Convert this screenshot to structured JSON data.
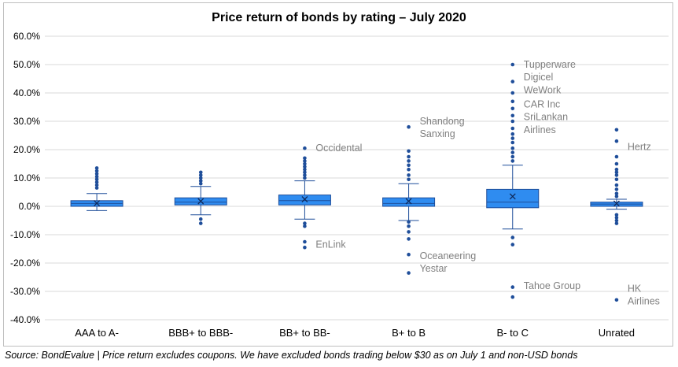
{
  "chart_data": {
    "type": "box",
    "title": "Price return of bonds by rating – July 2020",
    "xlabel": "",
    "ylabel": "",
    "ylim": [
      -40,
      60
    ],
    "y_ticks": [
      -40,
      -30,
      -20,
      -10,
      0,
      10,
      20,
      30,
      40,
      50,
      60
    ],
    "y_tick_labels": [
      "-40.0%",
      "-30.0%",
      "-20.0%",
      "-10.0%",
      "0.0%",
      "10.0%",
      "20.0%",
      "30.0%",
      "40.0%",
      "50.0%",
      "60.0%"
    ],
    "grid": true,
    "colors": {
      "box": "#2f8cf0",
      "box_border": "#1f4e9a",
      "outlier": "#1f4e9a",
      "grid": "#d9d9d9",
      "annotation": "#7f7f7f"
    },
    "categories": [
      "AAA to A-",
      "BBB+ to BBB-",
      "BB+ to BB-",
      "B+ to B",
      "B- to C",
      "Unrated"
    ],
    "boxes": [
      {
        "category": "AAA to A-",
        "whisker_low": -1.5,
        "q1": 0.0,
        "median": 1.0,
        "q3": 2.0,
        "whisker_high": 4.5,
        "mean": 1.1,
        "outliers": [
          6.5,
          7.5,
          8.5,
          9.5,
          10.5,
          11.5,
          12.5,
          13.5
        ]
      },
      {
        "category": "BBB+ to BBB-",
        "whisker_low": -3.0,
        "q1": 0.5,
        "median": 1.5,
        "q3": 3.0,
        "whisker_high": 7.0,
        "mean": 1.8,
        "outliers": [
          -6.0,
          -4.5,
          8.0,
          9.0,
          10.0,
          11.0,
          12.0
        ]
      },
      {
        "category": "BB+ to BB-",
        "whisker_low": -4.5,
        "q1": 0.5,
        "median": 2.0,
        "q3": 4.0,
        "whisker_high": 9.0,
        "mean": 2.5,
        "outliers": [
          -14.5,
          -12.5,
          -7.0,
          -6.0,
          10.0,
          11.0,
          12.0,
          13.0,
          14.0,
          15.0,
          16.0,
          17.0,
          20.5
        ]
      },
      {
        "category": "B+ to B",
        "whisker_low": -5.0,
        "q1": 0.0,
        "median": 1.0,
        "q3": 3.0,
        "whisker_high": 8.0,
        "mean": 1.8,
        "outliers": [
          -23.5,
          -17.0,
          -11.5,
          -9.0,
          -7.0,
          -5.5,
          9.5,
          11.0,
          13.0,
          14.5,
          16.0,
          17.5,
          19.5,
          28.0
        ]
      },
      {
        "category": "B- to C",
        "whisker_low": -8.0,
        "q1": -0.5,
        "median": 1.5,
        "q3": 6.0,
        "whisker_high": 14.5,
        "mean": 3.5,
        "outliers": [
          -32.0,
          -28.5,
          -13.5,
          -11.0,
          16.0,
          17.5,
          19.0,
          20.5,
          22.5,
          24.0,
          25.5,
          27.5,
          30.0,
          32.0,
          34.5,
          37.0,
          40.0,
          44.0,
          50.0
        ]
      },
      {
        "category": "Unrated",
        "whisker_low": -1.0,
        "q1": 0.0,
        "median": 0.8,
        "q3": 1.5,
        "whisker_high": 2.5,
        "mean": 1.0,
        "outliers": [
          -33.0,
          -6.0,
          -5.0,
          -4.0,
          -3.0,
          3.5,
          4.5,
          6.0,
          7.5,
          9.5,
          11.0,
          12.0,
          13.0,
          15.0,
          17.5,
          23.0,
          27.0
        ]
      }
    ],
    "annotations": [
      {
        "text": "Occidental",
        "category": "BB+ to BB-",
        "y": 20.5
      },
      {
        "text": "EnLink",
        "category": "BB+ to BB-",
        "y": -13.5
      },
      {
        "text": "Shandong",
        "category": "B+ to B",
        "y": 30.0
      },
      {
        "text": "Sanxing",
        "category": "B+ to B",
        "y": 25.5
      },
      {
        "text": "Oceaneering",
        "category": "B+ to B",
        "y": -17.5
      },
      {
        "text": "Yestar",
        "category": "B+ to B",
        "y": -22.0
      },
      {
        "text": "Tupperware",
        "category": "B- to C",
        "y": 50.0
      },
      {
        "text": "Digicel",
        "category": "B- to C",
        "y": 45.5
      },
      {
        "text": "WeWork",
        "category": "B- to C",
        "y": 41.0
      },
      {
        "text": "CAR Inc",
        "category": "B- to C",
        "y": 36.0
      },
      {
        "text": "SriLankan",
        "category": "B- to C",
        "y": 31.5
      },
      {
        "text": "Airlines",
        "category": "B- to C",
        "y": 27.0
      },
      {
        "text": "Tahoe Group",
        "category": "B- to C",
        "y": -28.0
      },
      {
        "text": "Hertz",
        "category": "Unrated",
        "y": 21.0
      },
      {
        "text": "HK",
        "category": "Unrated",
        "y": -29.0
      },
      {
        "text": "Airlines",
        "category": "Unrated",
        "y": -33.5
      }
    ]
  },
  "footer": {
    "source_note": "Source: BondEvalue | Price return excludes coupons. We have excluded bonds trading below $30 as on July 1 and non-USD bonds"
  }
}
